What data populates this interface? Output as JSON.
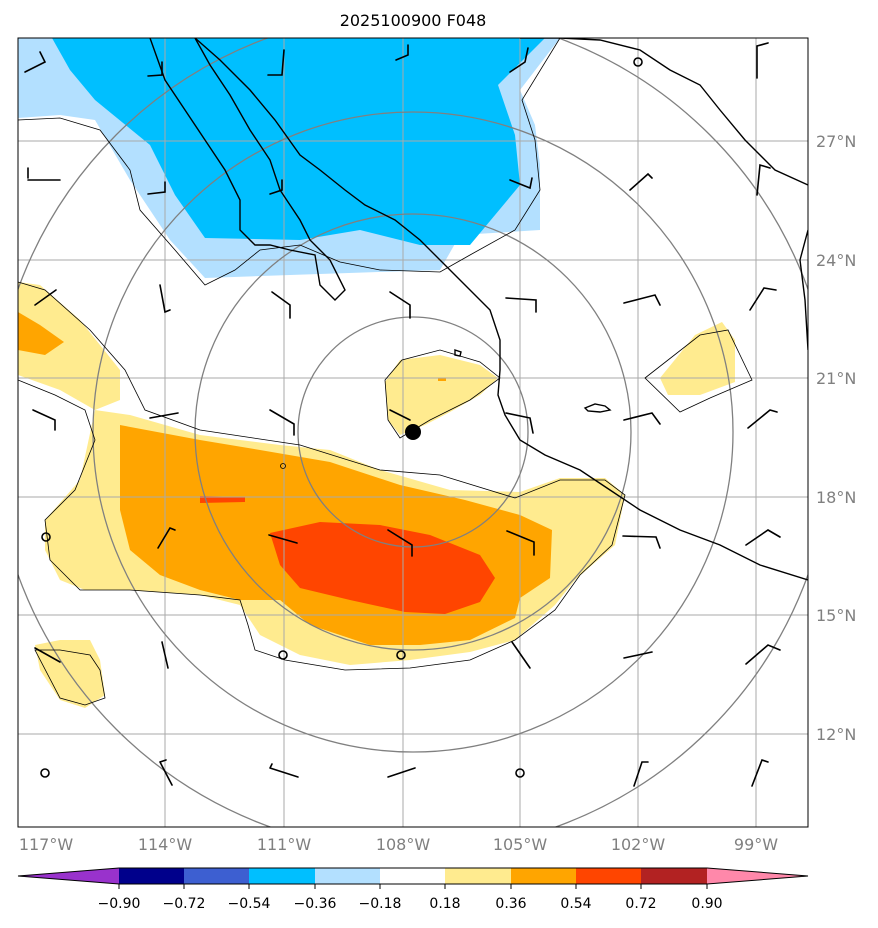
{
  "title": "2025100900 F048",
  "map": {
    "lon_labels": [
      "117°W",
      "114°W",
      "111°W",
      "108°W",
      "105°W",
      "102°W",
      "99°W"
    ],
    "lat_labels": [
      "27°N",
      "24°N",
      "21°N",
      "18°N",
      "15°N",
      "12°N"
    ],
    "storm_center": {
      "lon": -107.8,
      "lat": 19.6
    },
    "field_colors": {
      "neg_strong": "#00bfff",
      "neg_weak": "#b3e0ff",
      "pos_weak": "#ffeb8f",
      "pos_mid": "#ffa500",
      "pos_strong": "#ff4500"
    }
  },
  "colorbar": {
    "ticks": [
      "−0.90",
      "−0.72",
      "−0.54",
      "−0.36",
      "−0.18",
      "0.18",
      "0.36",
      "0.54",
      "0.72",
      "0.90"
    ],
    "colors": [
      "#9932cc",
      "#00008b",
      "#3d5fd1",
      "#00bfff",
      "#b3e0ff",
      "#ffffff",
      "#ffeb8f",
      "#ffa500",
      "#ff4500",
      "#b22222",
      "#ff88aa"
    ]
  }
}
